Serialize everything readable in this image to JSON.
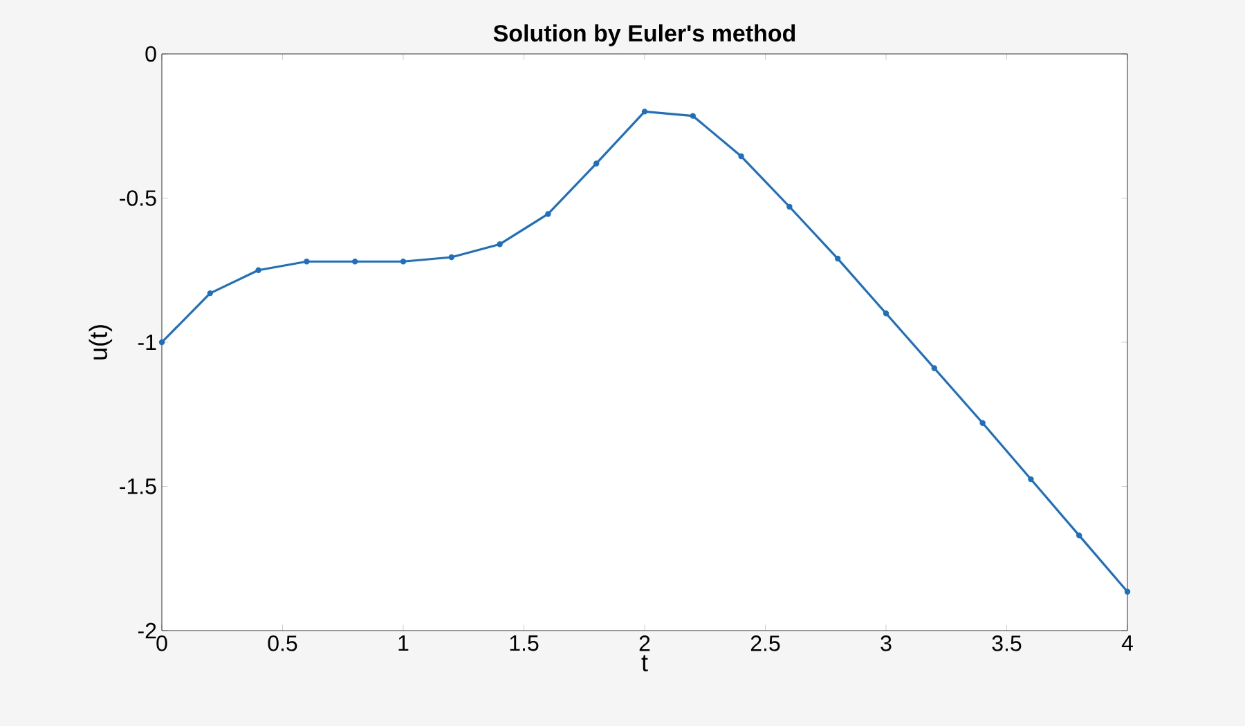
{
  "chart_data": {
    "type": "line",
    "title": "Solution by Euler's method",
    "xlabel": "t",
    "ylabel": "u(t)",
    "x": [
      0,
      0.2,
      0.4,
      0.6,
      0.8,
      1.0,
      1.2,
      1.4,
      1.6,
      1.8,
      2.0,
      2.2,
      2.4,
      2.6,
      2.8,
      3.0,
      3.2,
      3.4,
      3.6,
      3.8,
      4.0
    ],
    "series": [
      {
        "color": "#1f6fbf",
        "values": [
          -1.0,
          -0.83,
          -0.75,
          -0.72,
          -0.72,
          -0.72,
          -0.705,
          -0.66,
          -0.555,
          -0.38,
          -0.2,
          -0.215,
          -0.355,
          -0.53,
          -0.71,
          -0.9,
          -1.09,
          -1.28,
          -1.475,
          -1.67,
          -1.865
        ]
      }
    ],
    "xlim": [
      0,
      4
    ],
    "ylim": [
      -2,
      0
    ],
    "xticks": [
      0,
      0.5,
      1,
      1.5,
      2,
      2.5,
      3,
      3.5,
      4
    ],
    "yticks": [
      -2,
      -1.5,
      -1,
      -0.5,
      0
    ],
    "grid": false,
    "marker": "circle",
    "line_style": "solid"
  }
}
